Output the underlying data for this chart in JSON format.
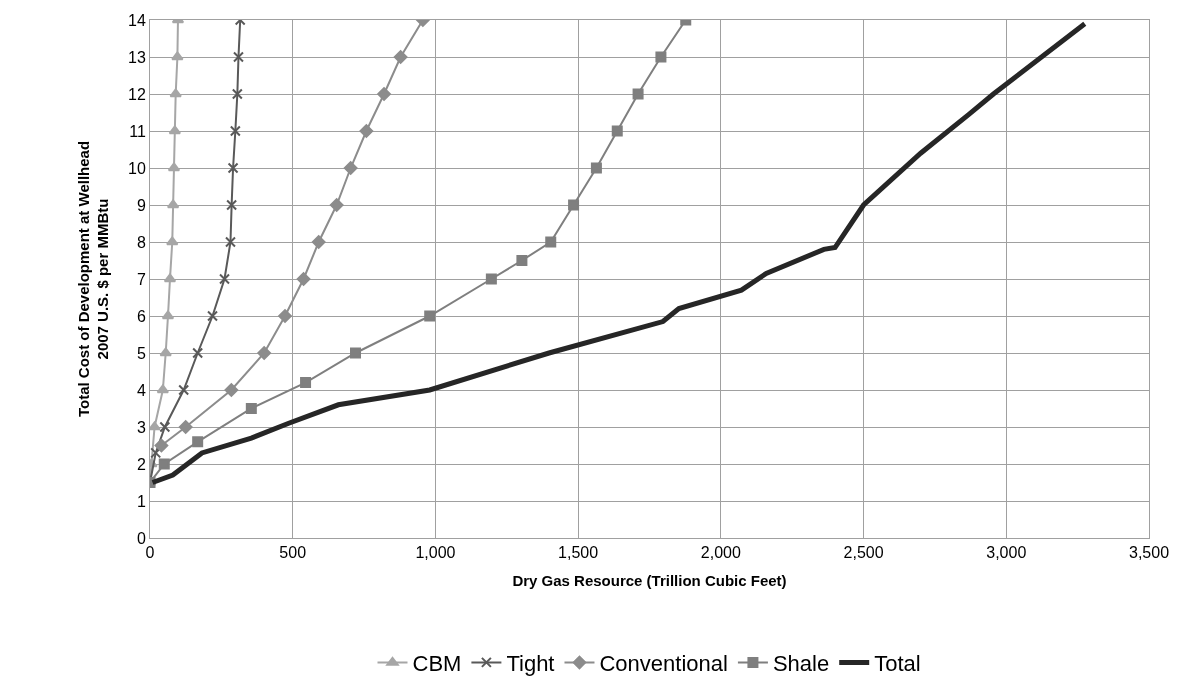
{
  "chart_data": {
    "type": "line",
    "xlabel": "Dry Gas Resource (Trillion Cubic Feet)",
    "ylabel": "Total Cost of Development at Wellhead\n2007 U.S. $ per MMBtu",
    "xlim": [
      0,
      3500
    ],
    "xticks": [
      0,
      {
        "value": 500,
        "label": "500"
      },
      {
        "value": 1000,
        "label": "1,000"
      },
      {
        "value": 1500,
        "label": "1,500"
      },
      {
        "value": 2000,
        "label": "2,000"
      },
      {
        "value": 2500,
        "label": "2,500"
      },
      {
        "value": 3000,
        "label": "3,000"
      },
      {
        "value": 3500,
        "label": "3,500"
      }
    ],
    "ylim": [
      0,
      14
    ],
    "yticks": [
      0,
      1,
      2,
      3,
      4,
      5,
      6,
      7,
      8,
      9,
      10,
      11,
      12,
      13,
      14
    ],
    "grid": true,
    "legend": "bottom",
    "series": [
      {
        "name": "CBM",
        "color": "#a6a6a6",
        "marker": "triangle",
        "x": [
          0,
          5,
          16,
          45,
          55,
          63,
          70,
          78,
          81,
          84,
          87,
          90,
          96,
          98
        ],
        "values": [
          1.5,
          2,
          3,
          4,
          5,
          6,
          7,
          8,
          9,
          10,
          11,
          12,
          13,
          14
        ]
      },
      {
        "name": "Tight",
        "color": "#595959",
        "marker": "cross",
        "x": [
          0,
          20,
          52,
          118,
          167,
          219,
          261,
          282,
          286,
          291,
          299,
          306,
          310,
          316
        ],
        "values": [
          1.5,
          2.3,
          3,
          4,
          5,
          6,
          7,
          8,
          9,
          10,
          11,
          12,
          13,
          14
        ]
      },
      {
        "name": "Conventional",
        "color": "#8c8c8c",
        "marker": "diamond",
        "x": [
          40,
          125,
          285,
          400,
          473,
          538,
          591,
          654,
          703,
          758,
          820,
          878,
          956
        ],
        "values": [
          2.5,
          3,
          4,
          5,
          6,
          7,
          8,
          9,
          10,
          11,
          12,
          13,
          14
        ]
      },
      {
        "name": "Shale",
        "color": "#7f7f7f",
        "marker": "square",
        "x": [
          0,
          50,
          167,
          355,
          545,
          720,
          980,
          1196,
          1303,
          1404,
          1484,
          1564,
          1637,
          1710,
          1790,
          1877
        ],
        "values": [
          1.5,
          2,
          2.6,
          3.5,
          4.2,
          5,
          6,
          7,
          7.5,
          8,
          9,
          10,
          11,
          12,
          13,
          14
        ]
      },
      {
        "name": "Total",
        "color": "#262626",
        "marker": "none",
        "x": [
          9,
          80,
          182,
          355,
          486,
          660,
          980,
          1398,
          1797,
          1853,
          2072,
          2159,
          2361,
          2400,
          2500,
          2700,
          2869,
          2955,
          3275
        ],
        "values": [
          1.5,
          1.7,
          2.3,
          2.7,
          3.1,
          3.6,
          4,
          5,
          5.85,
          6.2,
          6.7,
          7.15,
          7.8,
          7.85,
          9,
          10.4,
          11.45,
          12,
          13.9
        ]
      }
    ]
  }
}
